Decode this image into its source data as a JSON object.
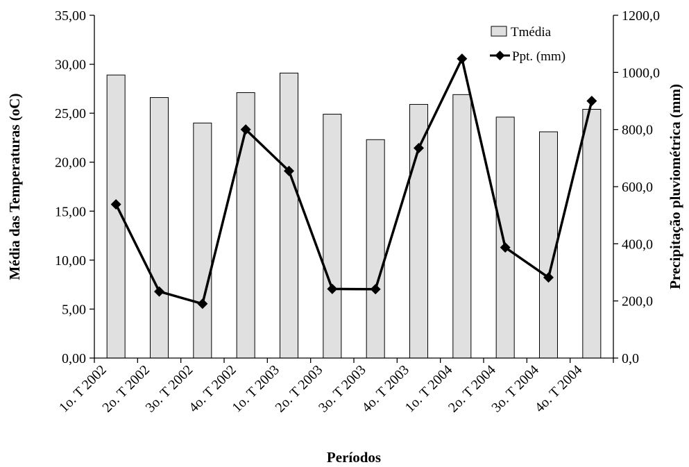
{
  "chart_data": {
    "type": "bar",
    "categories": [
      "1o. T 2002",
      "2o. T 2002",
      "3o. T 2002",
      "4o. T 2002",
      "1o. T 2003",
      "2o. T 2003",
      "3o. T 2003",
      "4o. T 2003",
      "1o. T 2004",
      "2o. T 2004",
      "3o. T 2004",
      "4o. T 2004"
    ],
    "series": [
      {
        "name": "Tmédia",
        "type": "bar",
        "axis": "left",
        "color": "#e0e0e0",
        "values": [
          28.9,
          26.6,
          24.0,
          27.1,
          29.1,
          24.9,
          22.3,
          25.9,
          26.9,
          24.6,
          23.1,
          25.4
        ]
      },
      {
        "name": "Ppt. (mm)",
        "type": "line",
        "axis": "right",
        "color": "#000000",
        "marker": "diamond",
        "values": [
          538,
          233,
          190,
          800,
          655,
          242,
          241,
          735,
          1048,
          387,
          282,
          900
        ]
      }
    ],
    "xlabel": "Períodos",
    "ylabel": "Média das Temperaturas (oC)",
    "y2label": "Precipitação pluviométrica (mm)",
    "ylim": [
      0,
      35
    ],
    "y2lim": [
      0,
      1200
    ],
    "yticks": [
      "0,00",
      "5,00",
      "10,00",
      "15,00",
      "20,00",
      "25,00",
      "30,00",
      "35,00"
    ],
    "y2ticks": [
      "0,0",
      "200,0",
      "400,0",
      "600,0",
      "800,0",
      "1000,0",
      "1200,0"
    ],
    "grid": false,
    "legend_position": "top-right"
  }
}
